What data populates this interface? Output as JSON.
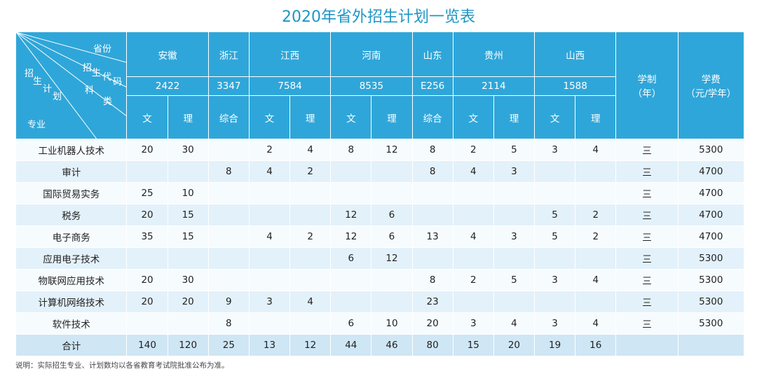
{
  "title": "2020年省外招生计划一览表",
  "corner": {
    "top": "省份",
    "mid": [
      "招",
      "生",
      "代",
      "码"
    ],
    "left": [
      "招",
      "生",
      "计",
      "划"
    ],
    "right": [
      "科",
      "类"
    ],
    "bottom": "专业"
  },
  "provinces": [
    {
      "name": "安徽",
      "code": "2422"
    },
    {
      "name": "浙江",
      "code": "3347"
    },
    {
      "name": "江西",
      "code": "7584"
    },
    {
      "name": "河南",
      "code": "8535"
    },
    {
      "name": "山东",
      "code": "E256"
    },
    {
      "name": "贵州",
      "code": "2114"
    },
    {
      "name": "山西",
      "code": "1588"
    }
  ],
  "subjects": [
    "文",
    "理",
    "综合",
    "文",
    "理",
    "文",
    "理",
    "综合",
    "文",
    "理",
    "文",
    "理"
  ],
  "extra_headers": {
    "duration": "学制",
    "duration_unit": "（年）",
    "fee": "学费",
    "fee_unit": "（元/学年）"
  },
  "rows": [
    {
      "major": "工业机器人技术",
      "values": [
        "20",
        "30",
        "",
        "2",
        "4",
        "8",
        "12",
        "8",
        "2",
        "5",
        "3",
        "4"
      ],
      "duration": "三",
      "fee": "5300"
    },
    {
      "major": "审计",
      "values": [
        "",
        "",
        "8",
        "4",
        "2",
        "",
        "",
        "8",
        "4",
        "3",
        "",
        ""
      ],
      "duration": "三",
      "fee": "4700"
    },
    {
      "major": "国际贸易实务",
      "values": [
        "25",
        "10",
        "",
        "",
        "",
        "",
        "",
        "",
        "",
        "",
        "",
        ""
      ],
      "duration": "三",
      "fee": "4700"
    },
    {
      "major": "税务",
      "values": [
        "20",
        "15",
        "",
        "",
        "",
        "12",
        "6",
        "",
        "",
        "",
        "5",
        "2"
      ],
      "duration": "三",
      "fee": "4700"
    },
    {
      "major": "电子商务",
      "values": [
        "35",
        "15",
        "",
        "4",
        "2",
        "12",
        "6",
        "13",
        "4",
        "3",
        "5",
        "2"
      ],
      "duration": "三",
      "fee": "4700"
    },
    {
      "major": "应用电子技术",
      "values": [
        "",
        "",
        "",
        "",
        "",
        "6",
        "12",
        "",
        "",
        "",
        "",
        ""
      ],
      "duration": "三",
      "fee": "5300"
    },
    {
      "major": "物联网应用技术",
      "values": [
        "20",
        "30",
        "",
        "",
        "",
        "",
        "",
        "8",
        "2",
        "5",
        "3",
        "4"
      ],
      "duration": "三",
      "fee": "5300"
    },
    {
      "major": "计算机网络技术",
      "values": [
        "20",
        "20",
        "9",
        "3",
        "4",
        "",
        "",
        "23",
        "",
        "",
        "",
        ""
      ],
      "duration": "三",
      "fee": "5300"
    },
    {
      "major": "软件技术",
      "values": [
        "",
        "",
        "8",
        "",
        "",
        "6",
        "10",
        "20",
        "3",
        "4",
        "3",
        "4"
      ],
      "duration": "三",
      "fee": "5300"
    }
  ],
  "total": {
    "label": "合计",
    "values": [
      "140",
      "120",
      "25",
      "13",
      "12",
      "44",
      "46",
      "80",
      "15",
      "20",
      "19",
      "16"
    ]
  },
  "note": "说明：实际招生专业、计划数均以各省教育考试院批准公布为准。"
}
